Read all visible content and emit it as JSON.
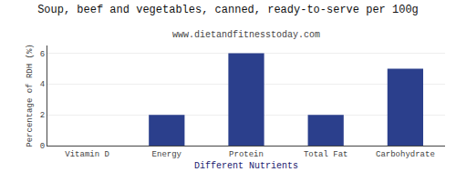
{
  "chart_data": {
    "type": "bar",
    "title": "Soup, beef and vegetables, canned, ready-to-serve per 100g",
    "subtitle": "www.dietandfitnesstoday.com",
    "xlabel": "Different Nutrients",
    "ylabel": "Percentage of RDH (%)",
    "categories": [
      "Vitamin D",
      "Energy",
      "Protein",
      "Total Fat",
      "Carbohydrate"
    ],
    "values": [
      0,
      2.0,
      6.0,
      2.0,
      5.0
    ],
    "color": "#2b3f8c",
    "ylim": [
      0,
      6.5
    ],
    "yticks": [
      0,
      2,
      4,
      6
    ],
    "grid": true
  }
}
